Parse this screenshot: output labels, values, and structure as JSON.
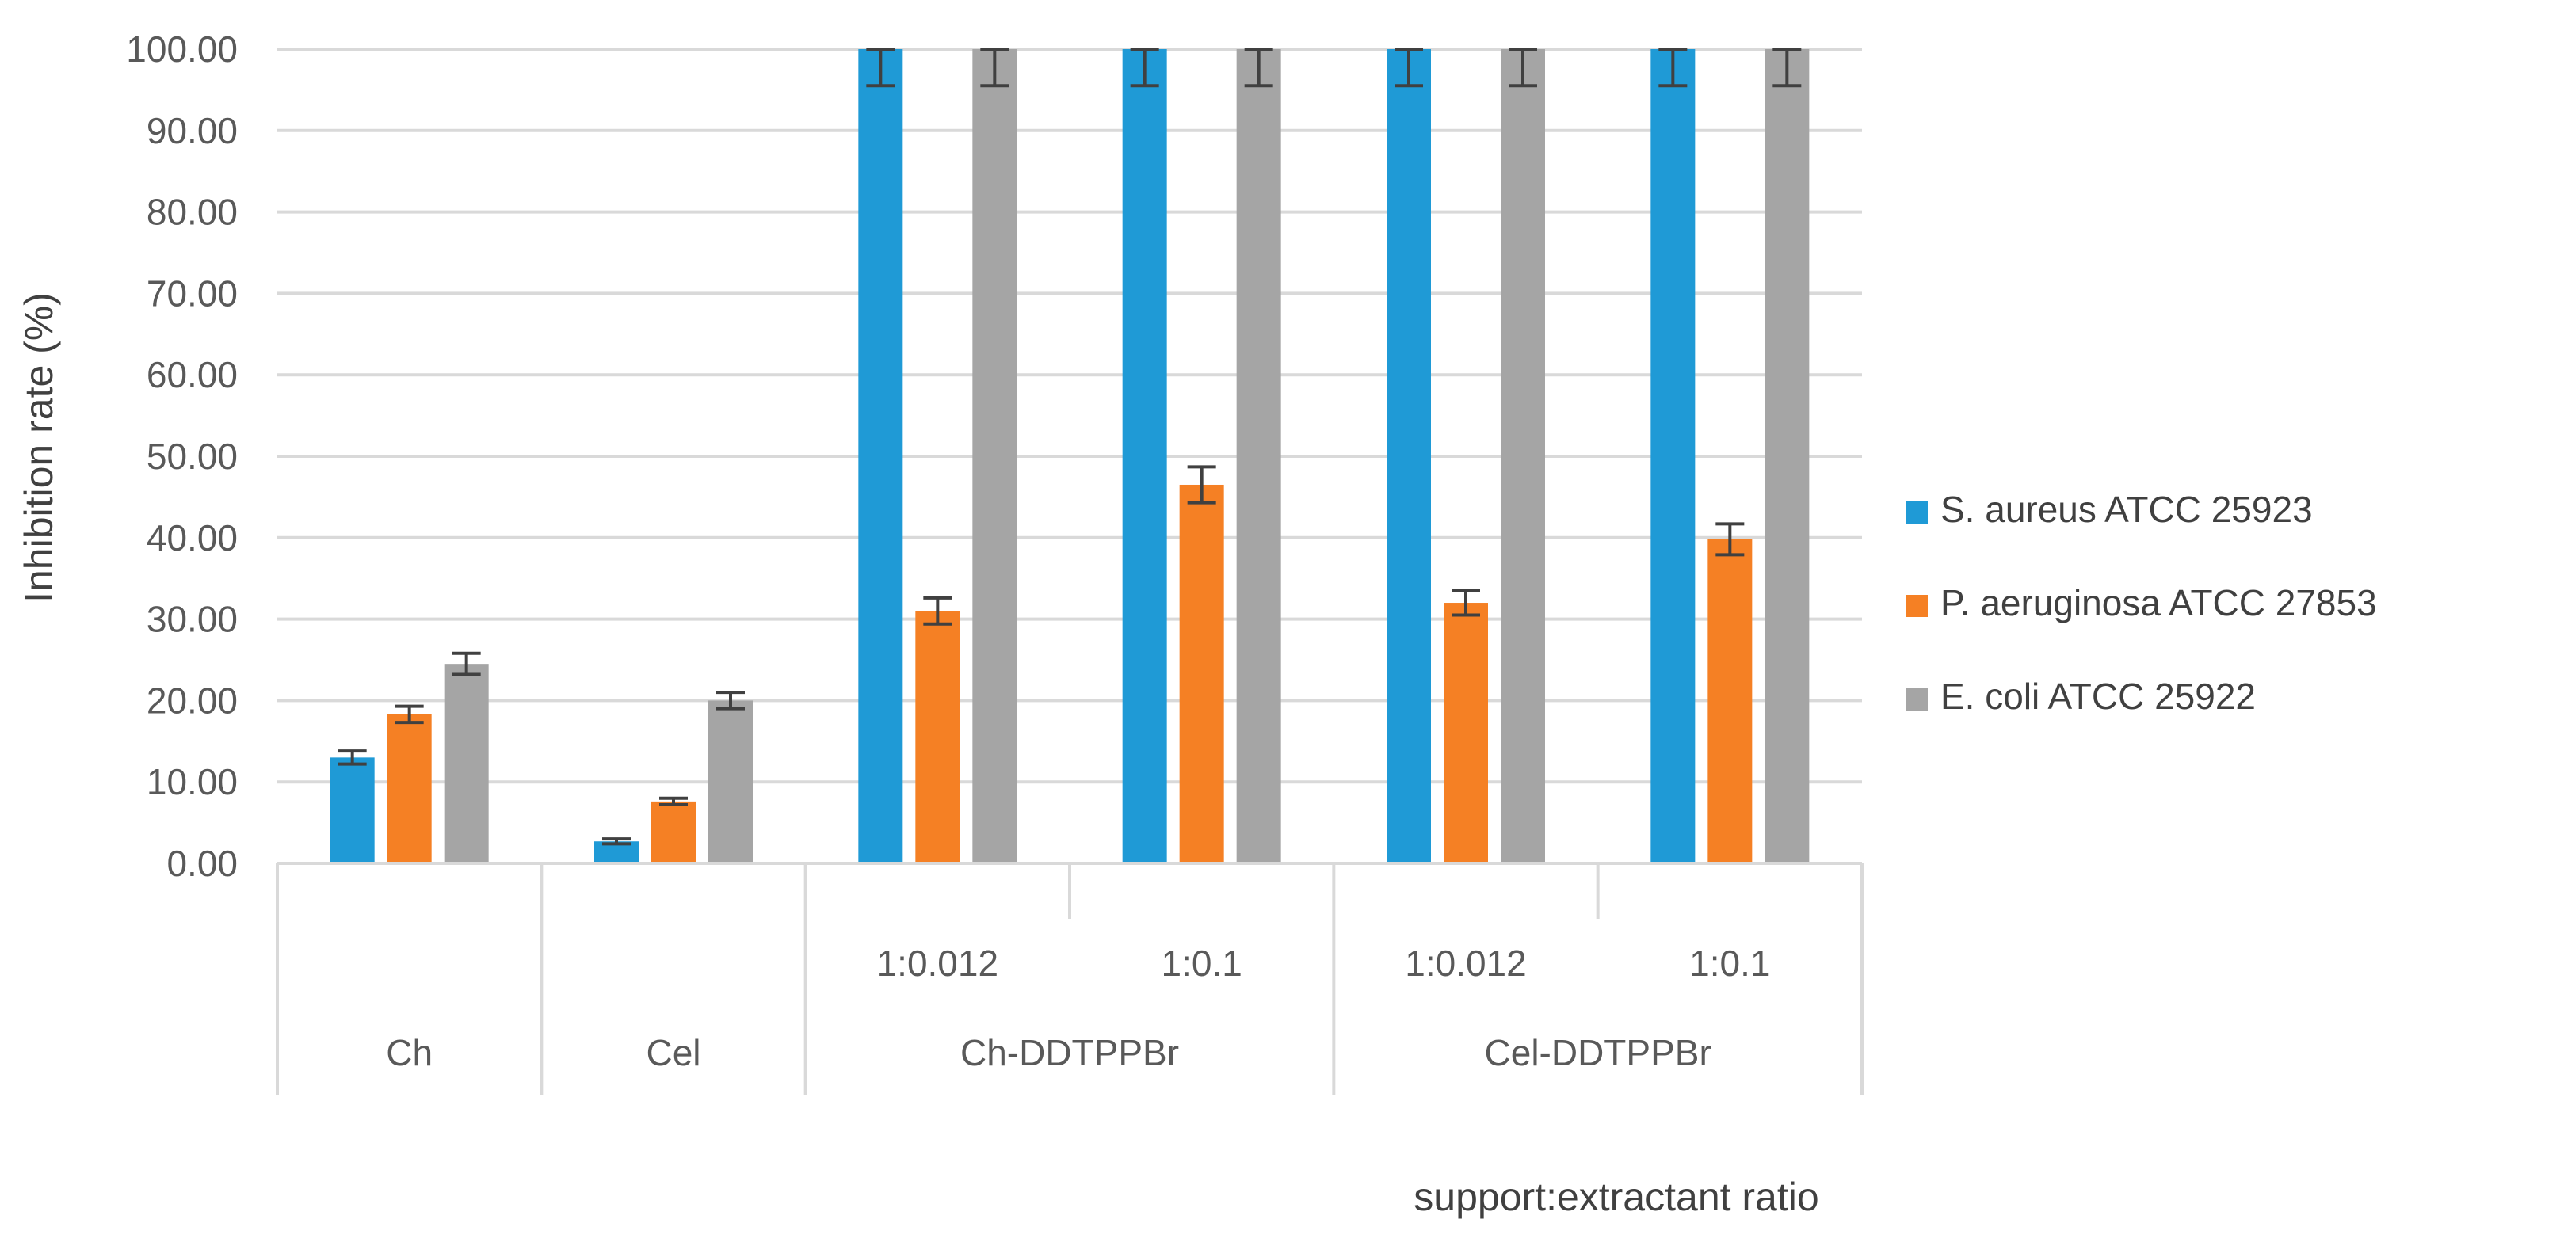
{
  "chart_data": {
    "type": "bar",
    "title": "",
    "ylabel": "Inhibition rate (%)",
    "xlabel": "support:extractant ratio",
    "ylim": [
      0,
      100
    ],
    "yticks": [
      "0.00",
      "10.00",
      "20.00",
      "30.00",
      "40.00",
      "50.00",
      "60.00",
      "70.00",
      "80.00",
      "90.00",
      "100.00"
    ],
    "grid": true,
    "legend_position": "right",
    "groups": [
      {
        "label": "Ch",
        "subcategories": [
          ""
        ]
      },
      {
        "label": "Cel",
        "subcategories": [
          ""
        ]
      },
      {
        "label": "Ch-DDTPPBr",
        "subcategories": [
          "1:0.012",
          "1:0.1"
        ]
      },
      {
        "label": "Cel-DDTPPBr",
        "subcategories": [
          "1:0.012",
          "1:0.1"
        ]
      }
    ],
    "categories": [
      "Ch",
      "Cel",
      "Ch-DDTPPBr 1:0.012",
      "Ch-DDTPPBr 1:0.1",
      "Cel-DDTPPBr 1:0.012",
      "Cel-DDTPPBr 1:0.1"
    ],
    "series": [
      {
        "name": "S. aureus ATCC 25923",
        "color": "#1f9ad6",
        "values": [
          13.0,
          2.7,
          100,
          100,
          100,
          100
        ],
        "errors": [
          0.8,
          0.3,
          4.5,
          4.5,
          4.5,
          4.5
        ]
      },
      {
        "name": "P. aeruginosa ATCC 27853",
        "color": "#f58024",
        "values": [
          18.3,
          7.6,
          31.0,
          46.5,
          32.0,
          39.8
        ],
        "errors": [
          1.0,
          0.4,
          1.6,
          2.2,
          1.5,
          1.9
        ]
      },
      {
        "name": "E. coli ATCC 25922",
        "color": "#a5a5a5",
        "values": [
          24.5,
          20.0,
          100,
          100,
          100,
          100
        ],
        "errors": [
          1.3,
          1.0,
          4.5,
          4.5,
          4.5,
          4.5
        ]
      }
    ],
    "error_bar_color": "#404040"
  }
}
